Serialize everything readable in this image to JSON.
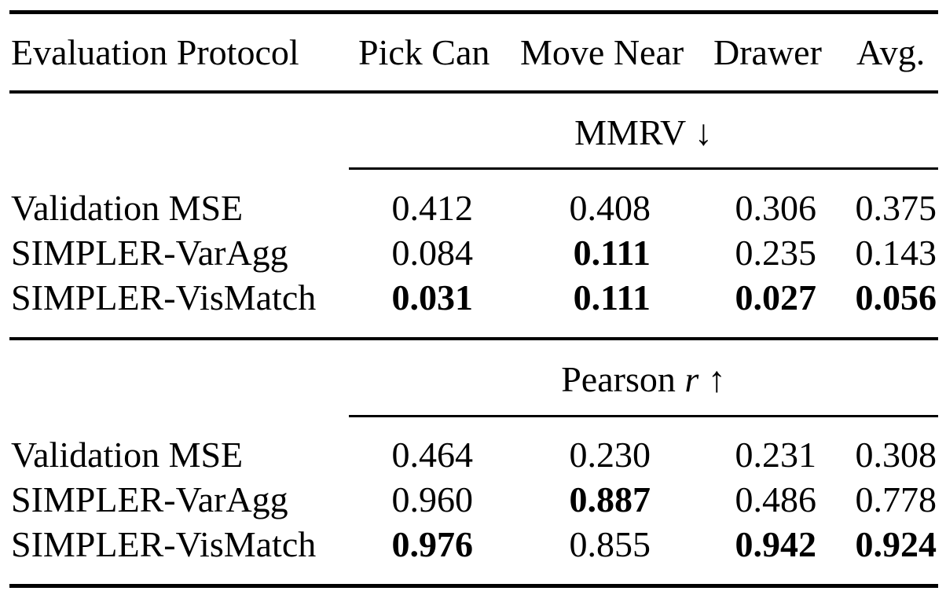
{
  "table": {
    "header": {
      "label": "Evaluation Protocol",
      "columns": [
        "Pick Can",
        "Move Near",
        "Drawer",
        "Avg."
      ]
    },
    "sections": [
      {
        "title": "MMRV ↓",
        "rows": [
          {
            "protocol": "Validation MSE",
            "values": [
              "0.412",
              "0.408",
              "0.306",
              "0.375"
            ],
            "bold": [
              false,
              false,
              false,
              false
            ]
          },
          {
            "protocol": "SIMPLER-VarAgg",
            "values": [
              "0.084",
              "0.111",
              "0.235",
              "0.143"
            ],
            "bold": [
              false,
              true,
              false,
              false
            ]
          },
          {
            "protocol": "SIMPLER-VisMatch",
            "values": [
              "0.031",
              "0.111",
              "0.027",
              "0.056"
            ],
            "bold": [
              true,
              true,
              true,
              true
            ]
          }
        ]
      },
      {
        "title_prefix": "Pearson",
        "title_var": "r",
        "title_suffix": "↑",
        "rows": [
          {
            "protocol": "Validation MSE",
            "values": [
              "0.464",
              "0.230",
              "0.231",
              "0.308"
            ],
            "bold": [
              false,
              false,
              false,
              false
            ]
          },
          {
            "protocol": "SIMPLER-VarAgg",
            "values": [
              "0.960",
              "0.887",
              "0.486",
              "0.778"
            ],
            "bold": [
              false,
              true,
              false,
              false
            ]
          },
          {
            "protocol": "SIMPLER-VisMatch",
            "values": [
              "0.976",
              "0.855",
              "0.942",
              "0.924"
            ],
            "bold": [
              true,
              false,
              true,
              true
            ]
          }
        ]
      }
    ]
  }
}
